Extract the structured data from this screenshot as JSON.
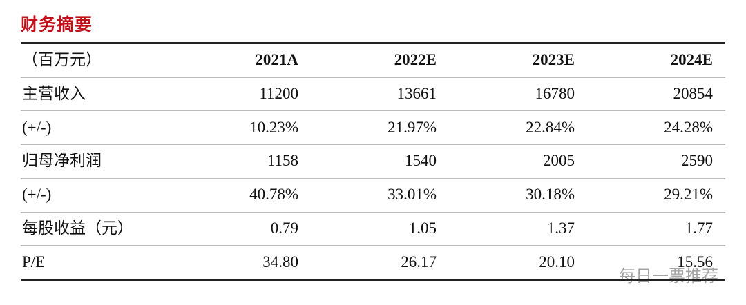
{
  "title": "财务摘要",
  "table": {
    "header": [
      "（百万元）",
      "2021A",
      "2022E",
      "2023E",
      "2024E"
    ],
    "rows": [
      [
        "主营收入",
        "11200",
        "13661",
        "16780",
        "20854"
      ],
      [
        "(+/-)",
        "10.23%",
        "21.97%",
        "22.84%",
        "24.28%"
      ],
      [
        "归母净利润",
        "1158",
        "1540",
        "2005",
        "2590"
      ],
      [
        "(+/-)",
        "40.78%",
        "33.01%",
        "30.18%",
        "29.21%"
      ],
      [
        "每股收益（元）",
        "0.79",
        "1.05",
        "1.37",
        "1.77"
      ],
      [
        "P/E",
        "34.80",
        "26.17",
        "20.10",
        "15.56"
      ]
    ]
  },
  "watermark": "每日一票推荐"
}
